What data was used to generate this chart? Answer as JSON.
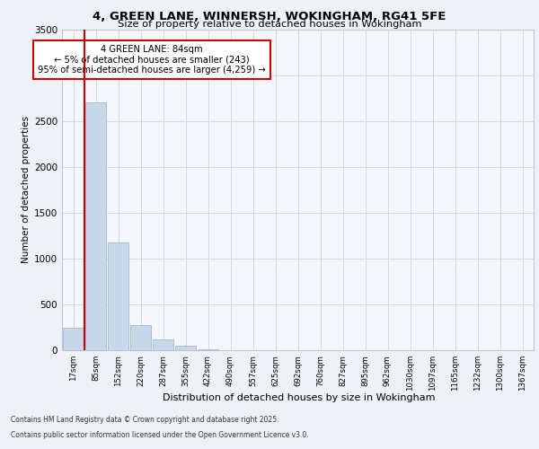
{
  "title_line1": "4, GREEN LANE, WINNERSH, WOKINGHAM, RG41 5FE",
  "title_line2": "Size of property relative to detached houses in Wokingham",
  "xlabel": "Distribution of detached houses by size in Wokingham",
  "ylabel": "Number of detached properties",
  "bins": [
    "17sqm",
    "85sqm",
    "152sqm",
    "220sqm",
    "287sqm",
    "355sqm",
    "422sqm",
    "490sqm",
    "557sqm",
    "625sqm",
    "692sqm",
    "760sqm",
    "827sqm",
    "895sqm",
    "962sqm",
    "1030sqm",
    "1097sqm",
    "1165sqm",
    "1232sqm",
    "1300sqm",
    "1367sqm"
  ],
  "values": [
    243,
    2700,
    1170,
    278,
    120,
    48,
    14,
    3,
    1,
    1,
    0,
    0,
    0,
    0,
    0,
    0,
    0,
    0,
    0,
    0,
    0
  ],
  "bar_color": "#c8d8e8",
  "bar_edge_color": "#a0b8d0",
  "vline_color": "#cc0000",
  "annotation_text": "4 GREEN LANE: 84sqm\n← 5% of detached houses are smaller (243)\n95% of semi-detached houses are larger (4,259) →",
  "annotation_box_color": "#ffffff",
  "annotation_box_edge_color": "#cc0000",
  "ylim": [
    0,
    3500
  ],
  "yticks": [
    0,
    500,
    1000,
    1500,
    2000,
    2500,
    3000,
    3500
  ],
  "footer_line1": "Contains HM Land Registry data © Crown copyright and database right 2025.",
  "footer_line2": "Contains public sector information licensed under the Open Government Licence v3.0.",
  "bg_color": "#eef2f7",
  "plot_bg_color": "#f5f7fc",
  "grid_color": "#d0d8ea"
}
